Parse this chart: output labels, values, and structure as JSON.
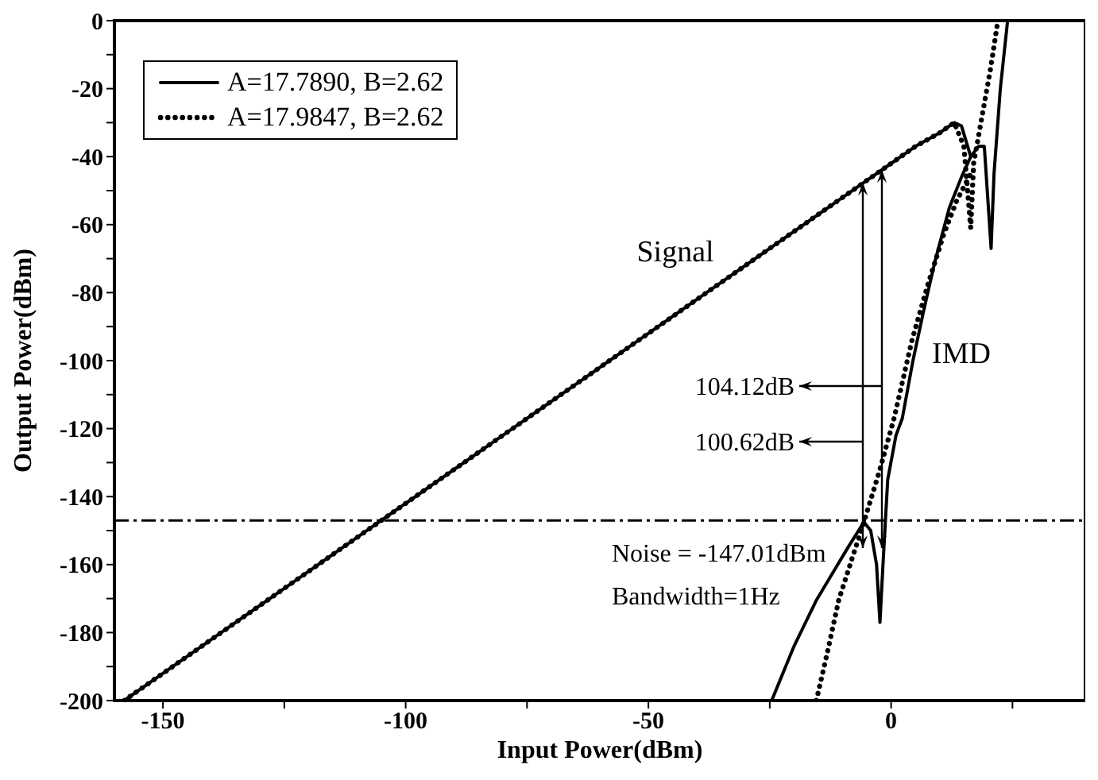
{
  "chart_data": {
    "type": "line",
    "xlabel": "Input Power(dBm)",
    "ylabel": "Output Power(dBm)",
    "xlim": [
      -160,
      40
    ],
    "ylim": [
      -200,
      0
    ],
    "xticks": [
      -150,
      {
        "value": -125,
        "label": null
      },
      -100,
      {
        "value": -75,
        "label": null
      },
      -50,
      {
        "value": -25,
        "label": null
      },
      0,
      {
        "value": 25,
        "label": null
      }
    ],
    "yticks": [
      0,
      {
        "value": -10,
        "label": null
      },
      -20,
      {
        "value": -30,
        "label": null
      },
      -40,
      {
        "value": -50,
        "label": null
      },
      -60,
      {
        "value": -70,
        "label": null
      },
      -80,
      {
        "value": -90,
        "label": null
      },
      -100,
      {
        "value": -110,
        "label": null
      },
      -120,
      {
        "value": -130,
        "label": null
      },
      -140,
      {
        "value": -150,
        "label": null
      },
      -160,
      {
        "value": -170,
        "label": null
      },
      -180,
      {
        "value": -190,
        "label": null
      },
      -200
    ],
    "grid": false,
    "legend": "top left",
    "marker": "none",
    "series": [
      {
        "name": "A=17.7890, B=2.62",
        "color": "#000000",
        "line_style": "solid",
        "x": [
          -158,
          -140,
          -120,
          -100,
          -80,
          -60,
          -40,
          -20,
          -10,
          0,
          5,
          10,
          13,
          14.5,
          16.4,
          18,
          19.2,
          20.6,
          21.2,
          22.5,
          24
        ],
        "values": [
          -200,
          -182,
          -162,
          -142,
          -122,
          -102,
          -82,
          -62,
          -52,
          -42,
          -37,
          -33,
          -30,
          -31,
          -40,
          -37,
          -37,
          -67,
          -45,
          -20,
          0
        ]
      },
      {
        "color": "#000000",
        "line_style": "solid",
        "x": [
          -24.6,
          -20,
          -15.4,
          -11,
          -8.9,
          -5.6,
          -4.2,
          -3,
          -2.3,
          -1.6,
          -0.7,
          1,
          2.3,
          4.5,
          6.6,
          9,
          12,
          14.5,
          16.4
        ],
        "values": [
          -200,
          -184,
          -170.5,
          -160,
          -155,
          -147.5,
          -150,
          -160,
          -177,
          -158,
          -135,
          -122,
          -117,
          -100,
          -86,
          -71,
          -55,
          -46,
          -40
        ]
      },
      {
        "name": "A=17.9847, B=2.62",
        "color": "#000000",
        "line_style": "dotted",
        "x": [
          -158,
          -140,
          -120,
          -100,
          -80,
          -60,
          -40,
          -20,
          -10,
          0,
          5,
          10,
          13,
          15,
          16.4,
          17,
          19,
          20.5,
          22
        ],
        "values": [
          -200,
          -182,
          -162,
          -142,
          -122,
          -102,
          -82,
          -62,
          -52,
          -42,
          -37,
          -33,
          -30,
          -37,
          -61,
          -42,
          -26,
          -14,
          0
        ]
      },
      {
        "color": "#000000",
        "line_style": "dotted",
        "x": [
          -15.4,
          -13,
          -10.8,
          -8,
          -5.6,
          -2.3,
          0.6,
          4.3,
          7.5,
          10.8,
          13.5,
          16.4
        ],
        "values": [
          -200,
          -185,
          -170.5,
          -158,
          -147.5,
          -132,
          -117,
          -94,
          -78,
          -63,
          -53,
          -45
        ]
      }
    ],
    "ref_lines": [
      {
        "axis": "y",
        "value": -147.01,
        "color": "#000000",
        "line_style": "dashdot"
      }
    ],
    "annotations": [
      "Signal",
      "IMD",
      "104.12dB",
      "100.62dB",
      "Noise = -147.01dBm",
      "Bandwidth=1Hz"
    ]
  }
}
